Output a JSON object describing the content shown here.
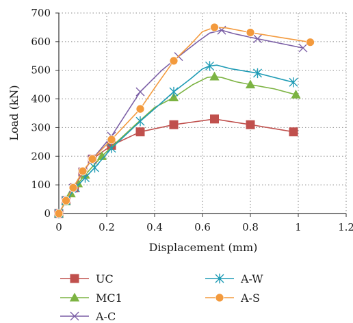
{
  "chart_data": {
    "type": "line",
    "title": "",
    "xlabel": "Displacement (mm)",
    "ylabel": "Load (kN)",
    "xlim": [
      0,
      1.2
    ],
    "ylim": [
      0,
      700
    ],
    "xticks": [
      "0",
      "0.2",
      "0.4",
      "0.6",
      "0.8",
      "1",
      "1.2"
    ],
    "yticks": [
      "0",
      "100",
      "200",
      "300",
      "400",
      "500",
      "600",
      "700"
    ],
    "grid": "dotted",
    "legend_position": "bottom",
    "series": [
      {
        "name": "UC",
        "color": "#c0504d",
        "marker": "square",
        "points": [
          [
            0,
            0
          ],
          [
            0.03,
            45
          ],
          [
            0.065,
            90
          ],
          [
            0.1,
            145
          ],
          [
            0.14,
            190
          ],
          [
            0.22,
            238
          ],
          [
            0.34,
            285
          ],
          [
            0.48,
            310
          ],
          [
            0.65,
            330
          ],
          [
            0.8,
            310
          ],
          [
            0.98,
            285
          ]
        ],
        "marked": [
          0,
          1,
          2,
          3,
          4,
          5,
          6,
          7,
          8,
          9,
          10
        ]
      },
      {
        "name": "MC1",
        "color": "#7cb342",
        "marker": "triangle",
        "points": [
          [
            0,
            0
          ],
          [
            0.03,
            42
          ],
          [
            0.05,
            70
          ],
          [
            0.08,
            105
          ],
          [
            0.11,
            135
          ],
          [
            0.18,
            200
          ],
          [
            0.23,
            240
          ],
          [
            0.32,
            310
          ],
          [
            0.4,
            370
          ],
          [
            0.48,
            405
          ],
          [
            0.56,
            450
          ],
          [
            0.62,
            475
          ],
          [
            0.65,
            478
          ],
          [
            0.68,
            475
          ],
          [
            0.74,
            460
          ],
          [
            0.8,
            450
          ],
          [
            0.9,
            435
          ],
          [
            0.99,
            415
          ]
        ],
        "marked": [
          0,
          1,
          2,
          3,
          4,
          5,
          9,
          12,
          15,
          17
        ]
      },
      {
        "name": "A-C",
        "color": "#7b5fa6",
        "marker": "x",
        "points": [
          [
            0,
            0
          ],
          [
            0.03,
            45
          ],
          [
            0.06,
            88
          ],
          [
            0.1,
            145
          ],
          [
            0.14,
            190
          ],
          [
            0.22,
            270
          ],
          [
            0.34,
            425
          ],
          [
            0.43,
            500
          ],
          [
            0.5,
            548
          ],
          [
            0.58,
            600
          ],
          [
            0.63,
            630
          ],
          [
            0.68,
            640
          ],
          [
            0.73,
            628
          ],
          [
            0.83,
            610
          ],
          [
            1.02,
            578
          ]
        ],
        "marked": [
          0,
          1,
          2,
          3,
          4,
          5,
          6,
          8,
          11,
          13,
          14
        ]
      },
      {
        "name": "A-W",
        "color": "#1e9bb5",
        "marker": "asterisk",
        "points": [
          [
            0,
            0
          ],
          [
            0.03,
            45
          ],
          [
            0.07,
            90
          ],
          [
            0.11,
            125
          ],
          [
            0.15,
            160
          ],
          [
            0.22,
            228
          ],
          [
            0.34,
            322
          ],
          [
            0.42,
            380
          ],
          [
            0.48,
            425
          ],
          [
            0.55,
            470
          ],
          [
            0.6,
            505
          ],
          [
            0.63,
            515
          ],
          [
            0.66,
            518
          ],
          [
            0.72,
            505
          ],
          [
            0.83,
            490
          ],
          [
            0.98,
            458
          ]
        ],
        "marked": [
          0,
          1,
          2,
          3,
          4,
          5,
          6,
          8,
          11,
          14,
          15
        ]
      },
      {
        "name": "A-S",
        "color": "#f39a3d",
        "marker": "circle",
        "points": [
          [
            0,
            0
          ],
          [
            0.03,
            45
          ],
          [
            0.06,
            90
          ],
          [
            0.1,
            148
          ],
          [
            0.14,
            190
          ],
          [
            0.22,
            258
          ],
          [
            0.34,
            365
          ],
          [
            0.41,
            450
          ],
          [
            0.48,
            533
          ],
          [
            0.55,
            590
          ],
          [
            0.6,
            635
          ],
          [
            0.65,
            650
          ],
          [
            0.7,
            648
          ],
          [
            0.8,
            632
          ],
          [
            0.9,
            618
          ],
          [
            1.05,
            598
          ]
        ],
        "marked": [
          0,
          1,
          2,
          3,
          4,
          5,
          6,
          8,
          11,
          13,
          15
        ]
      }
    ]
  }
}
